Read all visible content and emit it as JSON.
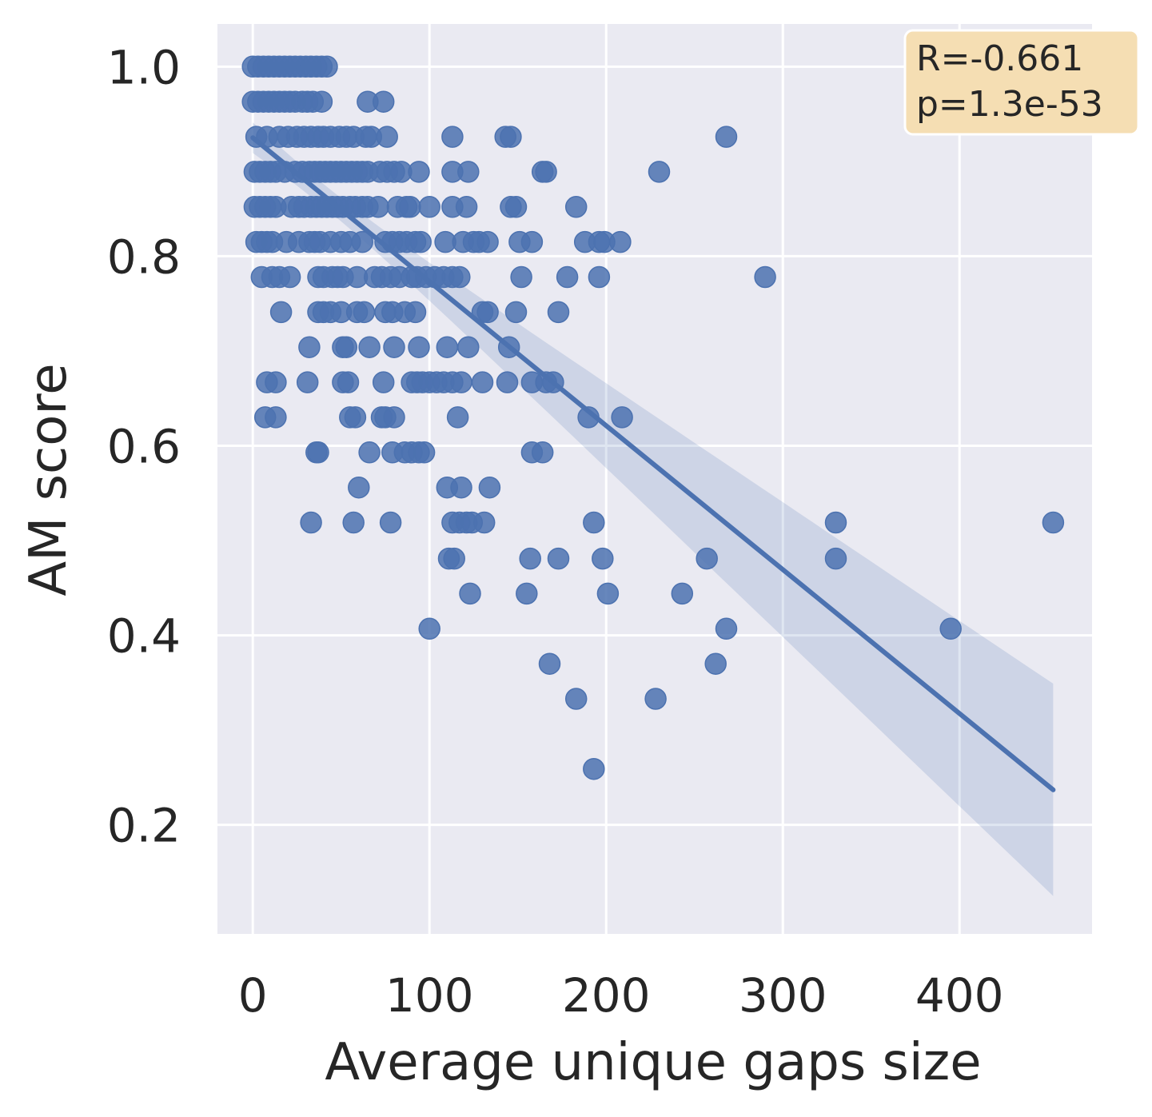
{
  "chart_data": {
    "type": "scatter",
    "xlabel": "Average unique gaps size",
    "ylabel": "AM score",
    "xlim": [
      -20,
      475
    ],
    "ylim": [
      0.085,
      1.045
    ],
    "xticks": [
      0,
      100,
      200,
      300,
      400
    ],
    "yticks": [
      0.2,
      0.4,
      0.6,
      0.8,
      1.0
    ],
    "xtick_labels": [
      "0",
      "100",
      "200",
      "300",
      "400"
    ],
    "ytick_labels": [
      "0.2",
      "0.4",
      "0.6",
      "0.8",
      "1.0"
    ],
    "grid": true,
    "colors": {
      "background": "#eaeaf2",
      "grid": "#ffffff",
      "points": "#4c72b0",
      "line": "#4c72b0",
      "band": "#4c72b0",
      "annotation_bg": "#f5deb3"
    },
    "annotation": {
      "lines": [
        "R=-0.661",
        "p=1.3e-53"
      ],
      "position": "top-right"
    },
    "regression": {
      "x": [
        0,
        453
      ],
      "y": [
        0.925,
        0.237
      ],
      "ci_lower_end": 0.125,
      "ci_upper_end": 0.335
    },
    "points": [
      [
        0,
        1.0
      ],
      [
        3,
        1.0
      ],
      [
        6,
        1.0
      ],
      [
        9,
        1.0
      ],
      [
        12,
        1.0
      ],
      [
        15,
        1.0
      ],
      [
        18,
        1.0
      ],
      [
        21,
        1.0
      ],
      [
        24,
        1.0
      ],
      [
        27,
        1.0
      ],
      [
        30,
        1.0
      ],
      [
        33,
        1.0
      ],
      [
        36,
        1.0
      ],
      [
        39,
        1.0
      ],
      [
        42,
        1.0
      ],
      [
        0,
        0.963
      ],
      [
        3,
        0.963
      ],
      [
        6,
        0.963
      ],
      [
        9,
        0.963
      ],
      [
        12,
        0.963
      ],
      [
        15,
        0.963
      ],
      [
        18,
        0.963
      ],
      [
        21,
        0.963
      ],
      [
        24,
        0.963
      ],
      [
        28,
        0.963
      ],
      [
        31,
        0.963
      ],
      [
        34,
        0.963
      ],
      [
        39,
        0.963
      ],
      [
        65,
        0.963
      ],
      [
        74,
        0.963
      ],
      [
        2,
        0.926
      ],
      [
        8,
        0.926
      ],
      [
        15,
        0.926
      ],
      [
        20,
        0.926
      ],
      [
        25,
        0.926
      ],
      [
        29,
        0.926
      ],
      [
        33,
        0.926
      ],
      [
        37,
        0.926
      ],
      [
        40,
        0.926
      ],
      [
        44,
        0.926
      ],
      [
        49,
        0.926
      ],
      [
        53,
        0.926
      ],
      [
        57,
        0.926
      ],
      [
        64,
        0.926
      ],
      [
        67,
        0.926
      ],
      [
        76,
        0.926
      ],
      [
        113,
        0.926
      ],
      [
        143,
        0.926
      ],
      [
        146,
        0.926
      ],
      [
        268,
        0.926
      ],
      [
        1,
        0.889
      ],
      [
        4,
        0.889
      ],
      [
        7,
        0.889
      ],
      [
        10,
        0.889
      ],
      [
        13,
        0.889
      ],
      [
        18,
        0.889
      ],
      [
        24,
        0.889
      ],
      [
        28,
        0.889
      ],
      [
        32,
        0.889
      ],
      [
        35,
        0.889
      ],
      [
        38,
        0.889
      ],
      [
        41,
        0.889
      ],
      [
        44,
        0.889
      ],
      [
        47,
        0.889
      ],
      [
        50,
        0.889
      ],
      [
        53,
        0.889
      ],
      [
        56,
        0.889
      ],
      [
        59,
        0.889
      ],
      [
        62,
        0.889
      ],
      [
        65,
        0.889
      ],
      [
        72,
        0.889
      ],
      [
        76,
        0.889
      ],
      [
        80,
        0.889
      ],
      [
        84,
        0.889
      ],
      [
        94,
        0.889
      ],
      [
        113,
        0.889
      ],
      [
        122,
        0.889
      ],
      [
        164,
        0.889
      ],
      [
        166,
        0.889
      ],
      [
        230,
        0.889
      ],
      [
        1,
        0.852
      ],
      [
        4,
        0.852
      ],
      [
        7,
        0.852
      ],
      [
        10,
        0.852
      ],
      [
        13,
        0.852
      ],
      [
        22,
        0.852
      ],
      [
        26,
        0.852
      ],
      [
        29,
        0.852
      ],
      [
        33,
        0.852
      ],
      [
        36,
        0.852
      ],
      [
        39,
        0.852
      ],
      [
        42,
        0.852
      ],
      [
        45,
        0.852
      ],
      [
        48,
        0.852
      ],
      [
        51,
        0.852
      ],
      [
        55,
        0.852
      ],
      [
        58,
        0.852
      ],
      [
        62,
        0.852
      ],
      [
        65,
        0.852
      ],
      [
        71,
        0.852
      ],
      [
        82,
        0.852
      ],
      [
        87,
        0.852
      ],
      [
        89,
        0.852
      ],
      [
        100,
        0.852
      ],
      [
        113,
        0.852
      ],
      [
        121,
        0.852
      ],
      [
        146,
        0.852
      ],
      [
        149,
        0.852
      ],
      [
        183,
        0.852
      ],
      [
        2,
        0.815
      ],
      [
        5,
        0.815
      ],
      [
        8,
        0.815
      ],
      [
        11,
        0.815
      ],
      [
        19,
        0.815
      ],
      [
        26,
        0.815
      ],
      [
        32,
        0.815
      ],
      [
        35,
        0.815
      ],
      [
        38,
        0.815
      ],
      [
        44,
        0.815
      ],
      [
        50,
        0.815
      ],
      [
        55,
        0.815
      ],
      [
        62,
        0.815
      ],
      [
        75,
        0.815
      ],
      [
        79,
        0.815
      ],
      [
        83,
        0.815
      ],
      [
        87,
        0.815
      ],
      [
        92,
        0.815
      ],
      [
        95,
        0.815
      ],
      [
        109,
        0.815
      ],
      [
        119,
        0.815
      ],
      [
        125,
        0.815
      ],
      [
        128,
        0.815
      ],
      [
        133,
        0.815
      ],
      [
        151,
        0.815
      ],
      [
        158,
        0.815
      ],
      [
        188,
        0.815
      ],
      [
        196,
        0.815
      ],
      [
        199,
        0.815
      ],
      [
        208,
        0.815
      ],
      [
        5,
        0.778
      ],
      [
        11,
        0.778
      ],
      [
        15,
        0.778
      ],
      [
        21,
        0.778
      ],
      [
        37,
        0.778
      ],
      [
        40,
        0.778
      ],
      [
        45,
        0.778
      ],
      [
        48,
        0.778
      ],
      [
        51,
        0.778
      ],
      [
        59,
        0.778
      ],
      [
        69,
        0.778
      ],
      [
        73,
        0.778
      ],
      [
        78,
        0.778
      ],
      [
        83,
        0.778
      ],
      [
        90,
        0.778
      ],
      [
        93,
        0.778
      ],
      [
        98,
        0.778
      ],
      [
        103,
        0.778
      ],
      [
        108,
        0.778
      ],
      [
        113,
        0.778
      ],
      [
        117,
        0.778
      ],
      [
        152,
        0.778
      ],
      [
        178,
        0.778
      ],
      [
        196,
        0.778
      ],
      [
        290,
        0.778
      ],
      [
        16,
        0.741
      ],
      [
        37,
        0.741
      ],
      [
        40,
        0.741
      ],
      [
        44,
        0.741
      ],
      [
        50,
        0.741
      ],
      [
        59,
        0.741
      ],
      [
        63,
        0.741
      ],
      [
        75,
        0.741
      ],
      [
        79,
        0.741
      ],
      [
        86,
        0.741
      ],
      [
        92,
        0.741
      ],
      [
        130,
        0.741
      ],
      [
        133,
        0.741
      ],
      [
        149,
        0.741
      ],
      [
        173,
        0.741
      ],
      [
        32,
        0.704
      ],
      [
        51,
        0.704
      ],
      [
        53,
        0.704
      ],
      [
        66,
        0.704
      ],
      [
        80,
        0.704
      ],
      [
        94,
        0.704
      ],
      [
        110,
        0.704
      ],
      [
        122,
        0.704
      ],
      [
        145,
        0.704
      ],
      [
        8,
        0.667
      ],
      [
        13,
        0.667
      ],
      [
        31,
        0.667
      ],
      [
        51,
        0.667
      ],
      [
        54,
        0.667
      ],
      [
        74,
        0.667
      ],
      [
        90,
        0.667
      ],
      [
        93,
        0.667
      ],
      [
        96,
        0.667
      ],
      [
        100,
        0.667
      ],
      [
        104,
        0.667
      ],
      [
        108,
        0.667
      ],
      [
        113,
        0.667
      ],
      [
        118,
        0.667
      ],
      [
        130,
        0.667
      ],
      [
        144,
        0.667
      ],
      [
        158,
        0.667
      ],
      [
        166,
        0.667
      ],
      [
        170,
        0.667
      ],
      [
        7,
        0.63
      ],
      [
        13,
        0.63
      ],
      [
        55,
        0.63
      ],
      [
        58,
        0.63
      ],
      [
        73,
        0.63
      ],
      [
        75,
        0.63
      ],
      [
        80,
        0.63
      ],
      [
        116,
        0.63
      ],
      [
        190,
        0.63
      ],
      [
        209,
        0.63
      ],
      [
        36,
        0.593
      ],
      [
        37,
        0.593
      ],
      [
        66,
        0.593
      ],
      [
        79,
        0.593
      ],
      [
        86,
        0.593
      ],
      [
        90,
        0.593
      ],
      [
        94,
        0.593
      ],
      [
        97,
        0.593
      ],
      [
        158,
        0.593
      ],
      [
        164,
        0.593
      ],
      [
        60,
        0.556
      ],
      [
        110,
        0.556
      ],
      [
        118,
        0.556
      ],
      [
        134,
        0.556
      ],
      [
        33,
        0.519
      ],
      [
        57,
        0.519
      ],
      [
        78,
        0.519
      ],
      [
        113,
        0.519
      ],
      [
        117,
        0.519
      ],
      [
        121,
        0.519
      ],
      [
        124,
        0.519
      ],
      [
        131,
        0.519
      ],
      [
        193,
        0.519
      ],
      [
        330,
        0.519
      ],
      [
        453,
        0.519
      ],
      [
        111,
        0.481
      ],
      [
        114,
        0.481
      ],
      [
        157,
        0.481
      ],
      [
        173,
        0.481
      ],
      [
        198,
        0.481
      ],
      [
        257,
        0.481
      ],
      [
        330,
        0.481
      ],
      [
        123,
        0.444
      ],
      [
        155,
        0.444
      ],
      [
        201,
        0.444
      ],
      [
        243,
        0.444
      ],
      [
        100,
        0.407
      ],
      [
        268,
        0.407
      ],
      [
        395,
        0.407
      ],
      [
        168,
        0.37
      ],
      [
        262,
        0.37
      ],
      [
        183,
        0.333
      ],
      [
        228,
        0.333
      ],
      [
        193,
        0.259
      ]
    ]
  }
}
